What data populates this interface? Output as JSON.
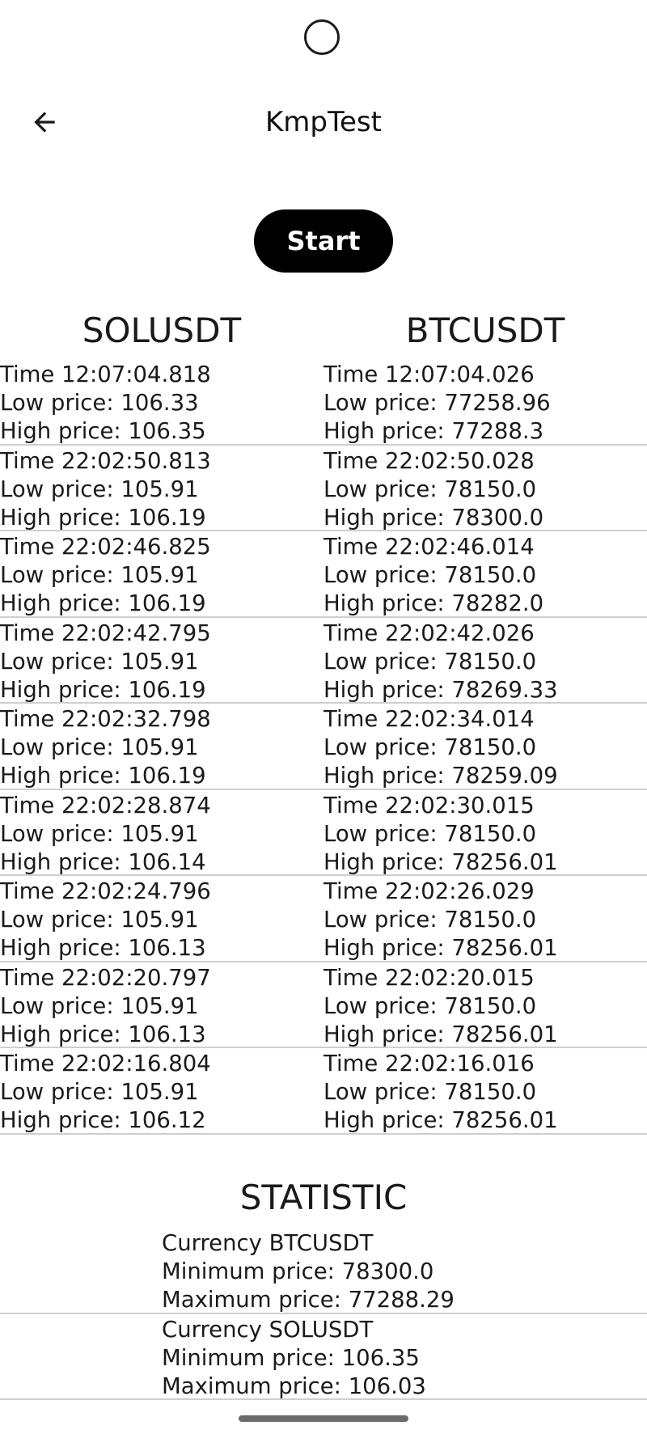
{
  "app": {
    "title": "KmpTest"
  },
  "toolbar": {
    "back_icon": "arrow-left-icon",
    "start_label": "Start"
  },
  "table": {
    "columns": [
      "SOLUSDT",
      "BTCUSDT"
    ],
    "rows": [
      {
        "left": {
          "time": "Time 12:07:04.818",
          "low": "Low price: 106.33",
          "high": "High price: 106.35"
        },
        "right": {
          "time": "Time 12:07:04.026",
          "low": "Low price: 77258.96",
          "high": "High price: 77288.3"
        }
      },
      {
        "left": {
          "time": "Time 22:02:50.813",
          "low": "Low price: 105.91",
          "high": "High price: 106.19"
        },
        "right": {
          "time": "Time 22:02:50.028",
          "low": "Low price: 78150.0",
          "high": "High price: 78300.0"
        }
      },
      {
        "left": {
          "time": "Time 22:02:46.825",
          "low": "Low price: 105.91",
          "high": "High price: 106.19"
        },
        "right": {
          "time": "Time 22:02:46.014",
          "low": "Low price: 78150.0",
          "high": "High price: 78282.0"
        }
      },
      {
        "left": {
          "time": "Time 22:02:42.795",
          "low": "Low price: 105.91",
          "high": "High price: 106.19"
        },
        "right": {
          "time": "Time 22:02:42.026",
          "low": "Low price: 78150.0",
          "high": "High price: 78269.33"
        }
      },
      {
        "left": {
          "time": "Time 22:02:32.798",
          "low": "Low price: 105.91",
          "high": "High price: 106.19"
        },
        "right": {
          "time": "Time 22:02:34.014",
          "low": "Low price: 78150.0",
          "high": "High price: 78259.09"
        }
      },
      {
        "left": {
          "time": "Time 22:02:28.874",
          "low": "Low price: 105.91",
          "high": "High price: 106.14"
        },
        "right": {
          "time": "Time 22:02:30.015",
          "low": "Low price: 78150.0",
          "high": "High price: 78256.01"
        }
      },
      {
        "left": {
          "time": "Time 22:02:24.796",
          "low": "Low price: 105.91",
          "high": "High price: 106.13"
        },
        "right": {
          "time": "Time 22:02:26.029",
          "low": "Low price: 78150.0",
          "high": "High price: 78256.01"
        }
      },
      {
        "left": {
          "time": "Time 22:02:20.797",
          "low": "Low price: 105.91",
          "high": "High price: 106.13"
        },
        "right": {
          "time": "Time 22:02:20.015",
          "low": "Low price: 78150.0",
          "high": "High price: 78256.01"
        }
      },
      {
        "left": {
          "time": "Time 22:02:16.804",
          "low": "Low price: 105.91",
          "high": "High price: 106.12"
        },
        "right": {
          "time": "Time 22:02:16.016",
          "low": "Low price: 78150.0",
          "high": "High price: 78256.01"
        }
      }
    ]
  },
  "statistic": {
    "title": "STATISTIC",
    "items": [
      {
        "currency": "Currency BTCUSDT",
        "min": "Minimum price: 78300.0",
        "max": "Maximum price: 77288.29"
      },
      {
        "currency": "Currency SOLUSDT",
        "min": "Minimum price: 106.35",
        "max": "Maximum price: 106.03"
      }
    ]
  }
}
